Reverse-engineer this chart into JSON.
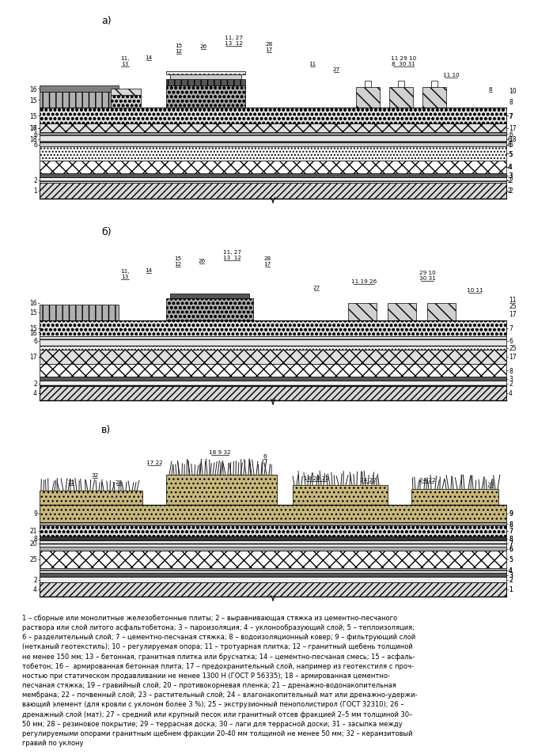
{
  "bg_color": "#ffffff",
  "title_a": "а)",
  "title_b": "б)",
  "title_c": "в)",
  "legend_text": "1 – сборные или монолитные железобетонные плиты; 2 – выравнивающая стяжка из цементно-песчаного\nраствора или слой литого асфальтобетона; 3 – пароизоляция; 4 – уклонообразующий слой; 5 – теплоизоляция;\n6 – разделительный слой; 7 – цементно-песчаная стяжка; 8 – водоизоляционный ковер; 9 – фильтрующий слой\n(нетканый геотекстиль); 10 – регулируемая опора; 11 – тротуарная плитка; 12 – гранитный щебень толщиной\nне менее 150 мм; 13 – бетонная, гранитная плитка или брусчатка; 14 – цементно-песчаная смесь; 15 – асфаль-\nтобетон; 16 –  армированная бетонная плита; 17 – предохранительный слой, например из геотекстиля с проч-\nностью при статическом продавливании не менее 1300 Н (ГОСТ Р 56335); 18 – армированная цементно-\nпесчаная стяжка; 19 – гравийный слой; 20 – противокорневая пленка; 21 – дренажно-водонакопительная\nмембрана; 22 – почвенный слой; 23 – растительный слой; 24 – влагонакопительный мат или дренажно-удержи-\nвающий элемент (для кровли с уклоном более 3 %); 25 – экструзионный пенополистирол (ГОСТ 32310); 26 –\nдренажный слой (мат); 27 – средний или крупный песок или гранитный отсев фракцией 2–5 мм толщиной 30–\n50 мм; 28 – резиновое покрытие; 29 – террасная доска; 30 – лаги для террасной доски; 31 – засыпка между\nрегулируемыми опорами гранитным щебнем фракции 20-40 мм толщиной не менее 50 мм; 32 – керамзитовый\nгравий по уклону"
}
